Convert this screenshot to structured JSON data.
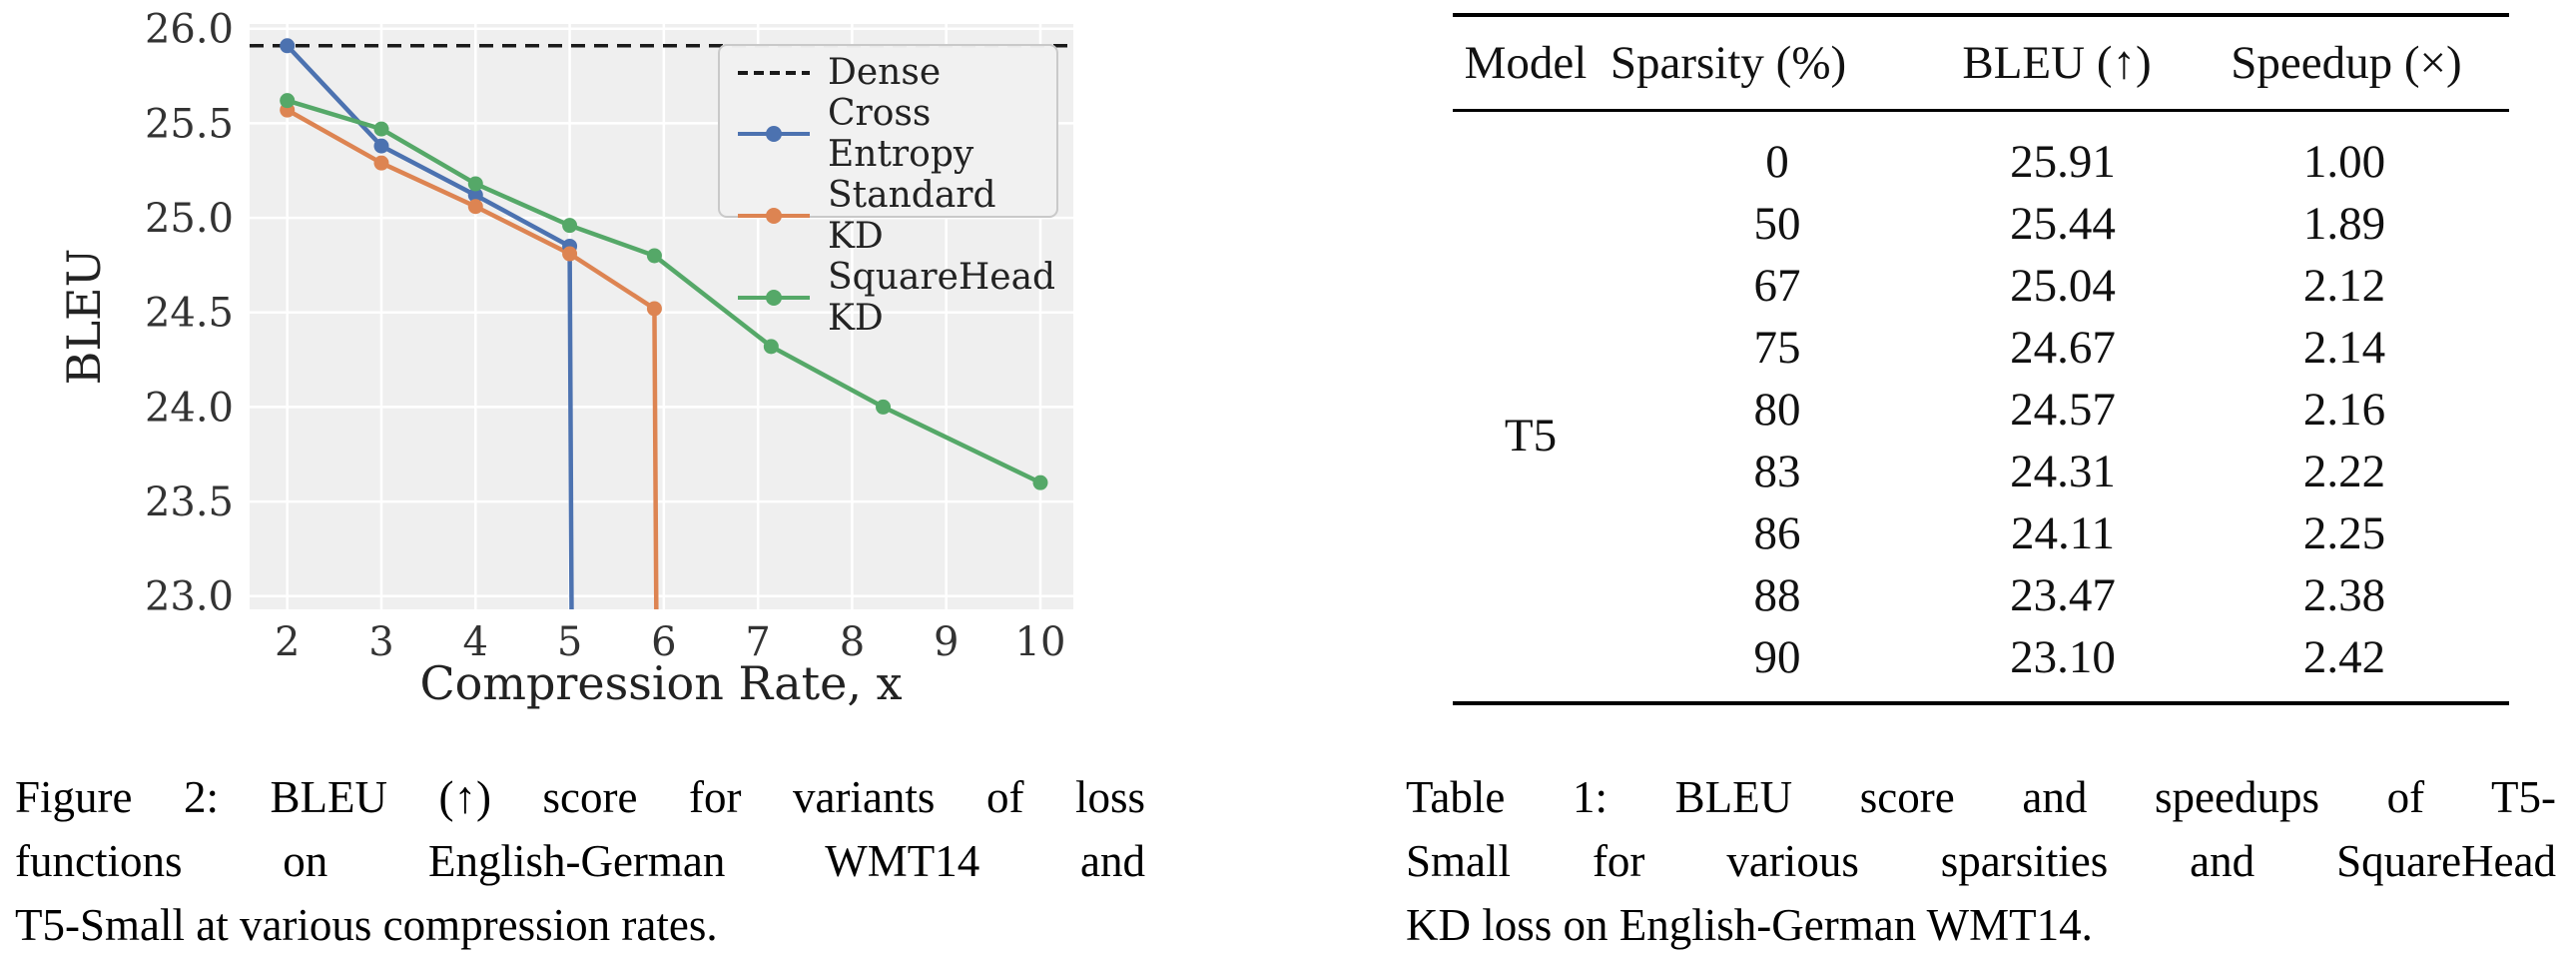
{
  "chart_data": {
    "type": "line",
    "title": "",
    "xlabel": "Compression Rate, x",
    "ylabel": "BLEU",
    "xlim": [
      1.6,
      10.35
    ],
    "ylim": [
      22.93,
      26.025
    ],
    "xticks": [
      2,
      3,
      4,
      5,
      6,
      7,
      8,
      9,
      10
    ],
    "yticks": [
      23.0,
      23.5,
      24.0,
      24.5,
      25.0,
      25.5,
      26.0
    ],
    "grid": true,
    "plot_bg": "#efefef",
    "grid_color": "#ffffff",
    "tick_color": "#333333",
    "legend_position": "upper right",
    "series": [
      {
        "name": "Dense",
        "color": "#1a1a1a",
        "dashed": true,
        "line_x": [
          1.6,
          10.35
        ],
        "line_y": [
          25.91,
          25.91
        ],
        "marker_x": [],
        "marker_y": []
      },
      {
        "name": "Cross Entropy",
        "color": "#4c72b0",
        "dashed": false,
        "line_x": [
          2,
          3,
          4,
          5,
          5.02
        ],
        "line_y": [
          25.91,
          25.38,
          25.12,
          24.85,
          22.93
        ],
        "marker_x": [
          2,
          3,
          4,
          5
        ],
        "marker_y": [
          25.91,
          25.38,
          25.12,
          24.85
        ]
      },
      {
        "name": "Standard KD",
        "color": "#dd8452",
        "dashed": false,
        "line_x": [
          2,
          3,
          4,
          5,
          5.9,
          5.92
        ],
        "line_y": [
          25.57,
          25.29,
          25.06,
          24.81,
          24.52,
          22.93
        ],
        "marker_x": [
          2,
          3,
          4,
          5,
          5.9
        ],
        "marker_y": [
          25.57,
          25.29,
          25.06,
          24.81,
          24.52
        ]
      },
      {
        "name": "SquareHead KD",
        "color": "#55a868",
        "dashed": false,
        "line_x": [
          2,
          3,
          4,
          5,
          5.9,
          7.14,
          8.33,
          10
        ],
        "line_y": [
          25.62,
          25.47,
          25.18,
          24.96,
          24.8,
          24.32,
          24.0,
          23.6
        ],
        "marker_x": [
          2,
          3,
          4,
          5,
          5.9,
          7.14,
          8.33,
          10
        ],
        "marker_y": [
          25.62,
          25.47,
          25.18,
          24.96,
          24.8,
          24.32,
          24.0,
          23.6
        ]
      }
    ]
  },
  "figure": {
    "caption_lines": [
      "Figure 2: BLEU (↑) score for variants of loss",
      "functions on English-German WMT14 and",
      "T5-Small at various compression rates."
    ]
  },
  "table": {
    "columns": [
      "Model",
      "Sparsity (%)",
      "BLEU (↑)",
      "Speedup (×)"
    ],
    "model_label": "T5",
    "rows": [
      {
        "sparsity": "0",
        "bleu": "25.91",
        "speedup": "1.00"
      },
      {
        "sparsity": "50",
        "bleu": "25.44",
        "speedup": "1.89"
      },
      {
        "sparsity": "67",
        "bleu": "25.04",
        "speedup": "2.12"
      },
      {
        "sparsity": "75",
        "bleu": "24.67",
        "speedup": "2.14"
      },
      {
        "sparsity": "80",
        "bleu": "24.57",
        "speedup": "2.16"
      },
      {
        "sparsity": "83",
        "bleu": "24.31",
        "speedup": "2.22"
      },
      {
        "sparsity": "86",
        "bleu": "24.11",
        "speedup": "2.25"
      },
      {
        "sparsity": "88",
        "bleu": "23.47",
        "speedup": "2.38"
      },
      {
        "sparsity": "90",
        "bleu": "23.10",
        "speedup": "2.42"
      }
    ],
    "caption_lines": [
      "Table 1: BLEU score and speedups of T5-",
      "Small for various sparsities and SquareHead",
      "KD loss on English-German WMT14."
    ]
  }
}
